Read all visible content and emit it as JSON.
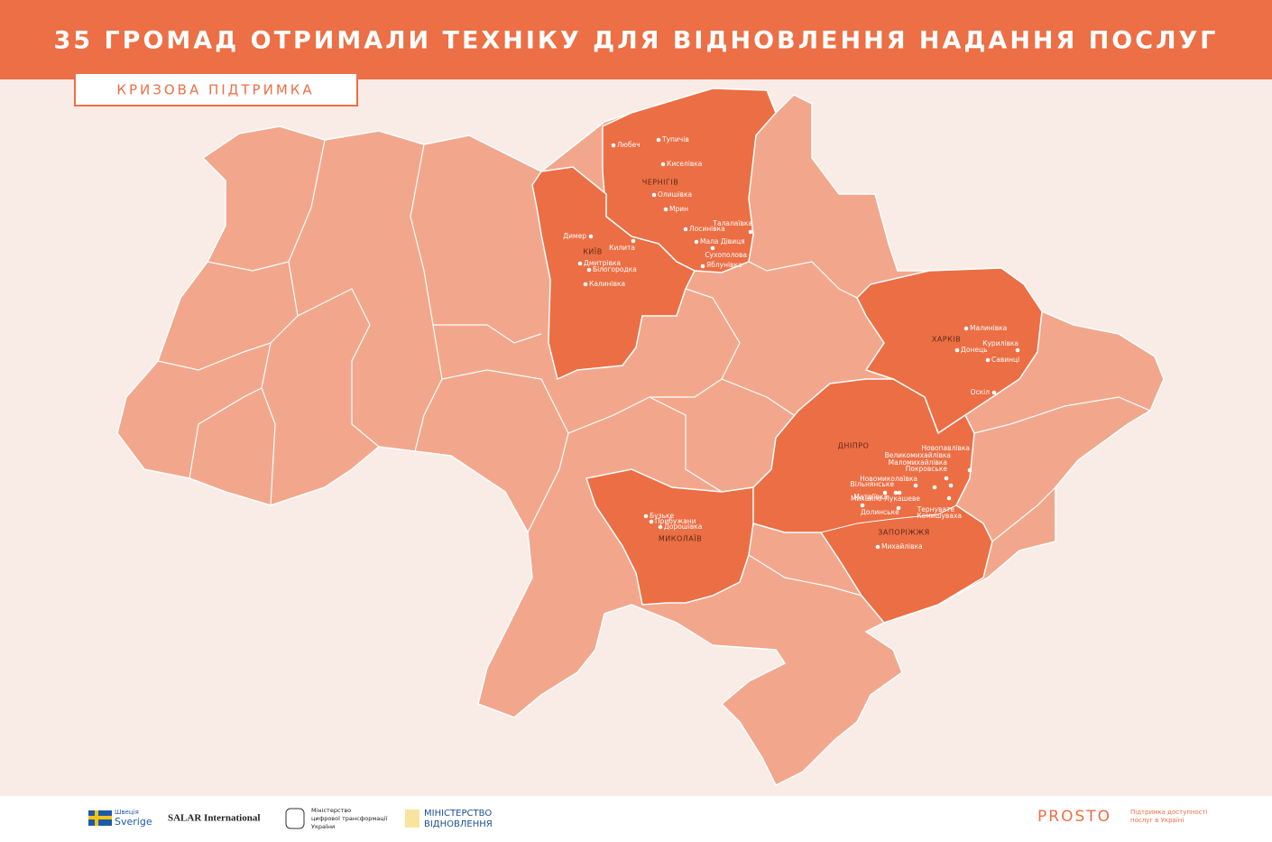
{
  "header": {
    "title": "35 ГРОМАД ОТРИМАЛИ ТЕХНІКУ ДЛЯ ВІДНОВЛЕННЯ НАДАННЯ ПОСЛУГ",
    "badge": "КРИЗОВА ПІДТРИМКА"
  },
  "regions": [
    {
      "name": "ЧЕРНІГІВ",
      "places": [
        "Любеч",
        "Тупичів",
        "Киселівка",
        "Олишівка",
        "Мрин",
        "Лосинівка",
        "Талалаївка",
        "Мала Дівиця",
        "Сухополова",
        "Яблунівка"
      ]
    },
    {
      "name": "КИЇВ",
      "places": [
        "Димер",
        "Килита",
        "Дмитрівка",
        "Білогородка",
        "Калинівка"
      ]
    },
    {
      "name": "ХАРКІВ",
      "places": [
        "Малинівка",
        "Курилівка",
        "Донець",
        "Савинці",
        "Оскіл"
      ]
    },
    {
      "name": "ДНІПРО",
      "places": [
        "Новопавлівка",
        "Великомихайлівка",
        "Маломихайлівка",
        "Покровське",
        "Новомиколаївка",
        "Вільнянське",
        "Матвіївка",
        "Михайло-Лукашеве",
        "Тернувате",
        "Долинське",
        "Комишуваха"
      ]
    },
    {
      "name": "ЗАПОРІЖЖЯ",
      "places": [
        "Михайлівка"
      ]
    },
    {
      "name": "МИКОЛАЇВ",
      "places": [
        "Бузьке",
        "Прибужани",
        "Дорошівка"
      ]
    }
  ],
  "footer": {
    "sweden_small": "Швеція",
    "sweden": "Sverige",
    "salar": "SALAR International",
    "digital": [
      "Міністерство",
      "цифрової трансформації",
      "України"
    ],
    "restoration": [
      "МІНІСТЕРСТВО",
      "ВІДНОВЛЕННЯ"
    ],
    "prosto": "PROSTO",
    "prosto_tagline": [
      "Підтримка доступності",
      "послуг в Україні"
    ]
  }
}
